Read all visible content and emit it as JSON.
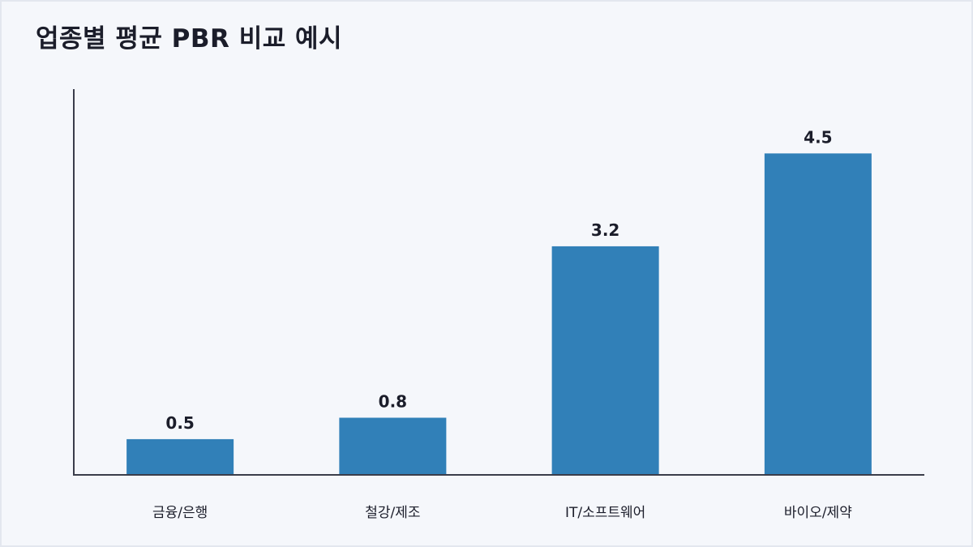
{
  "title": "업종별 평균 PBR 비교 예시",
  "colors": {
    "bar": "#3180b8",
    "axis": "#3a3d4a",
    "text": "#1b1d2a"
  },
  "chart_data": {
    "type": "bar",
    "title": "업종별 평균 PBR 비교 예시",
    "categories": [
      "금융/은행",
      "철강/제조",
      "IT/소프트웨어",
      "바이오/제약"
    ],
    "values": [
      0.5,
      0.8,
      3.2,
      4.5
    ],
    "data_labels": [
      "0.5",
      "0.8",
      "3.2",
      "4.5"
    ],
    "xlabel": "",
    "ylabel": "",
    "ylim": [
      0,
      5.4
    ],
    "grid": false,
    "legend": "none"
  }
}
